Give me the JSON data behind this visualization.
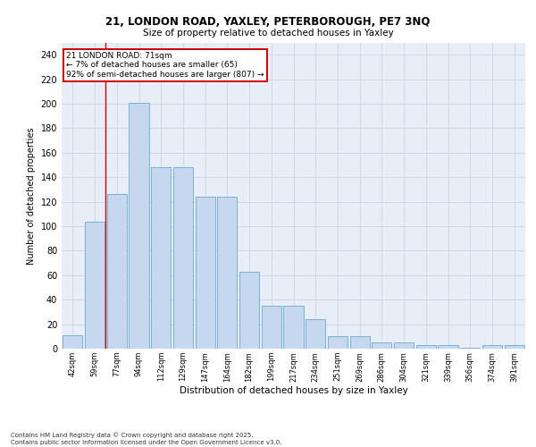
{
  "title_line1": "21, LONDON ROAD, YAXLEY, PETERBOROUGH, PE7 3NQ",
  "title_line2": "Size of property relative to detached houses in Yaxley",
  "xlabel": "Distribution of detached houses by size in Yaxley",
  "ylabel": "Number of detached properties",
  "categories": [
    "42sqm",
    "59sqm",
    "77sqm",
    "94sqm",
    "112sqm",
    "129sqm",
    "147sqm",
    "164sqm",
    "182sqm",
    "199sqm",
    "217sqm",
    "234sqm",
    "251sqm",
    "269sqm",
    "286sqm",
    "304sqm",
    "321sqm",
    "339sqm",
    "356sqm",
    "374sqm",
    "391sqm"
  ],
  "values": [
    11,
    104,
    126,
    201,
    148,
    148,
    124,
    124,
    63,
    35,
    35,
    24,
    10,
    10,
    5,
    5,
    3,
    3,
    1,
    3,
    3
  ],
  "bar_color": "#c5d8f0",
  "bar_edge_color": "#6fa8d0",
  "grid_color": "#d0d8e8",
  "background_color": "#e8eef8",
  "red_line_x": 1.5,
  "annotation_text": "21 LONDON ROAD: 71sqm\n← 7% of detached houses are smaller (65)\n92% of semi-detached houses are larger (807) →",
  "annotation_box_color": "#ffffff",
  "annotation_border_color": "#cc0000",
  "footnote": "Contains HM Land Registry data © Crown copyright and database right 2025.\nContains public sector information licensed under the Open Government Licence v3.0.",
  "ylim": [
    0,
    250
  ],
  "yticks": [
    0,
    20,
    40,
    60,
    80,
    100,
    120,
    140,
    160,
    180,
    200,
    220,
    240
  ]
}
